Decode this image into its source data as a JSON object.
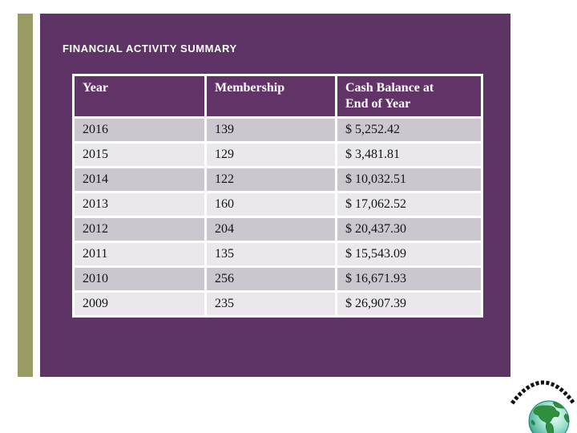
{
  "slide": {
    "title": "FINANCIAL ACTIVITY SUMMARY"
  },
  "table": {
    "columns": [
      "Year",
      "Membership",
      "Cash Balance at End of Year"
    ],
    "rows": [
      [
        "2016",
        "139",
        "$ 5,252.42"
      ],
      [
        "2015",
        "129",
        "$ 3,481.81"
      ],
      [
        "2014",
        "122",
        "$ 10,032.51"
      ],
      [
        "2013",
        "160",
        "$ 17,062.52"
      ],
      [
        "2012",
        "204",
        "$ 20,437.30"
      ],
      [
        "2011",
        "135",
        "$ 15,543.09"
      ],
      [
        "2010",
        "256",
        "$ 16,671.93"
      ],
      [
        "2009",
        "235",
        "$ 26,907.39"
      ]
    ]
  },
  "logo": {
    "icon": "globe-logo"
  },
  "colors": {
    "accent_olive": "#9a9b64",
    "slide_purple": "#5e3365",
    "header_purple": "#623366",
    "row_dark": "#ccc6ce",
    "row_light": "#eae8ec",
    "table_border": "#ffffff",
    "globe_ocean": "#9fe3cf",
    "globe_land": "#2f8f3c"
  }
}
